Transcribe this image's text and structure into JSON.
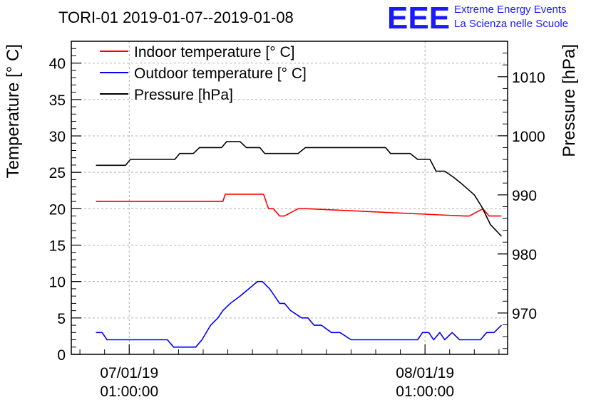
{
  "chart_data": {
    "type": "line",
    "title": "TORI-01 2019-01-07--2019-01-08",
    "ylabel": "Temperature [° C]",
    "y2label": "Pressure [hPa]",
    "ylim": [
      0,
      43
    ],
    "y2lim": [
      963,
      1016
    ],
    "xlim": [
      -4.7,
      30.7
    ],
    "grid": true,
    "legend_position": "top-left",
    "x_ticks": [
      {
        "value": 0,
        "line1": "07/01/19",
        "line2": "01:00:00"
      },
      {
        "value": 24,
        "line1": "08/01/19",
        "line2": "01:00:00"
      }
    ],
    "y_ticks": [
      0,
      5,
      10,
      15,
      20,
      25,
      30,
      35,
      40
    ],
    "y2_ticks": [
      970,
      980,
      990,
      1000,
      1010
    ],
    "series": [
      {
        "name": "Indoor temperature [° C]",
        "axis": "left",
        "color": "#ff0000",
        "x": [
          -2.7,
          7.6,
          7.8,
          10.9,
          11.3,
          11.7,
          12.2,
          12.6,
          13.7,
          14.4,
          27.2,
          27.6,
          28.7,
          29.2,
          30.2
        ],
        "y": [
          21,
          21,
          22,
          22,
          20,
          20,
          19,
          19,
          20,
          20,
          19,
          19,
          20,
          19,
          19
        ]
      },
      {
        "name": "Outdoor temperature [° C]",
        "axis": "left",
        "color": "#0000ff",
        "x": [
          -2.7,
          -2.2,
          -1.8,
          3.1,
          3.6,
          5.4,
          5.9,
          6.6,
          7.2,
          7.6,
          8.2,
          9.0,
          10.4,
          10.8,
          11.4,
          12.2,
          12.6,
          13.1,
          14.0,
          14.5,
          15.0,
          15.6,
          16.4,
          17.1,
          18.0,
          18.6,
          19.1,
          20.5,
          21.0,
          23.4,
          23.8,
          24.3,
          24.7,
          25.2,
          25.6,
          26.2,
          26.8,
          28.5,
          29.0,
          29.6,
          30.2
        ],
        "y": [
          3,
          3,
          2,
          2,
          1,
          1,
          2,
          4,
          5,
          6,
          7,
          8,
          10,
          10,
          9,
          7,
          7,
          6,
          5,
          5,
          4,
          4,
          3,
          3,
          2,
          2,
          2,
          2,
          2,
          2,
          3,
          3,
          2,
          3,
          2,
          3,
          2,
          2,
          3,
          3,
          4
        ]
      },
      {
        "name": "Pressure [hPa]",
        "axis": "right",
        "color": "#000000",
        "x": [
          -2.7,
          -0.3,
          0.1,
          3.7,
          4.1,
          5.2,
          5.7,
          7.5,
          7.9,
          9.0,
          9.5,
          10.6,
          11.0,
          13.7,
          14.3,
          20.8,
          21.2,
          22.8,
          23.4,
          24.4,
          24.9,
          25.6,
          26.3,
          26.9,
          28.0,
          28.6,
          29.3,
          30.2
        ],
        "y": [
          995,
          995,
          996,
          996,
          997,
          997,
          998,
          998,
          999,
          999,
          998,
          998,
          997,
          997,
          998,
          998,
          997,
          997,
          996,
          996,
          994,
          994,
          993,
          992,
          990,
          988,
          985,
          983
        ]
      }
    ]
  },
  "logo": {
    "mark": "EEE",
    "line1": "Extreme Energy Events",
    "line2": "La Scienza nelle Scuole"
  }
}
